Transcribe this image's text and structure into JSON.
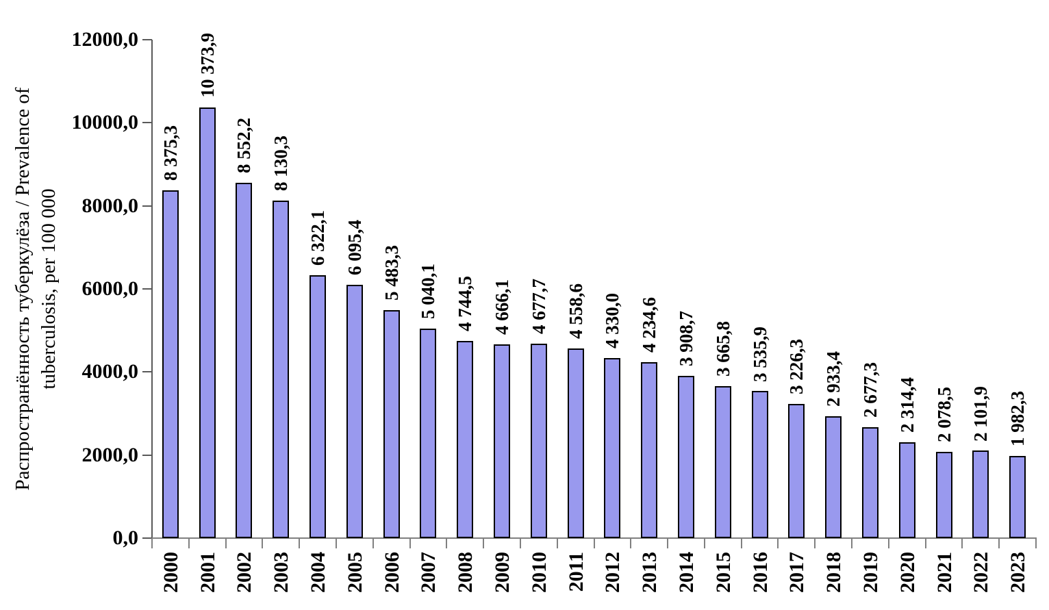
{
  "chart_data": {
    "type": "bar",
    "title": "",
    "ylabel_line1": "Распространённость туберкулёза / Prevalence of",
    "ylabel_line2": "tuberculosis, per 100 000",
    "xlabel": "",
    "categories": [
      "2000",
      "2001",
      "2002",
      "2003",
      "2004",
      "2005",
      "2006",
      "2007",
      "2008",
      "2009",
      "2010",
      "2011",
      "2012",
      "2013",
      "2014",
      "2015",
      "2016",
      "2017",
      "2018",
      "2019",
      "2020",
      "2021",
      "2022",
      "2023"
    ],
    "values": [
      8375.3,
      10373.9,
      8552.2,
      8130.3,
      6322.1,
      6095.4,
      5483.3,
      5040.1,
      4744.5,
      4666.1,
      4677.7,
      4558.6,
      4330.0,
      4234.6,
      3908.7,
      3665.8,
      3535.9,
      3226.3,
      2933.4,
      2677.3,
      2314.4,
      2078.5,
      2101.9,
      1982.3
    ],
    "value_labels": [
      "8 375,3",
      "10 373,9",
      "8 552,2",
      "8 130,3",
      "6 322,1",
      "6 095,4",
      "5 483,3",
      "5 040,1",
      "4 744,5",
      "4 666,1",
      "4 677,7",
      "4 558,6",
      "4 330,0",
      "4 234,6",
      "3 908,7",
      "3 665,8",
      "3 535,9",
      "3 226,3",
      "2 933,4",
      "2 677,3",
      "2 314,4",
      "2 078,5",
      "2 101,9",
      "1 982,3"
    ],
    "ylim": [
      0,
      12000
    ],
    "ytick_step": 2000,
    "ytick_labels": [
      "0,0",
      "2000,0",
      "4000,0",
      "6000,0",
      "8000,0",
      "10000,0",
      "12000,0"
    ],
    "grid": false,
    "legend": "none",
    "bar_color": "#9999EE",
    "bar_border_color": "#000000",
    "x_axis_color": "#808080",
    "y_axis_color": "#595959",
    "text_color": "#000000"
  }
}
